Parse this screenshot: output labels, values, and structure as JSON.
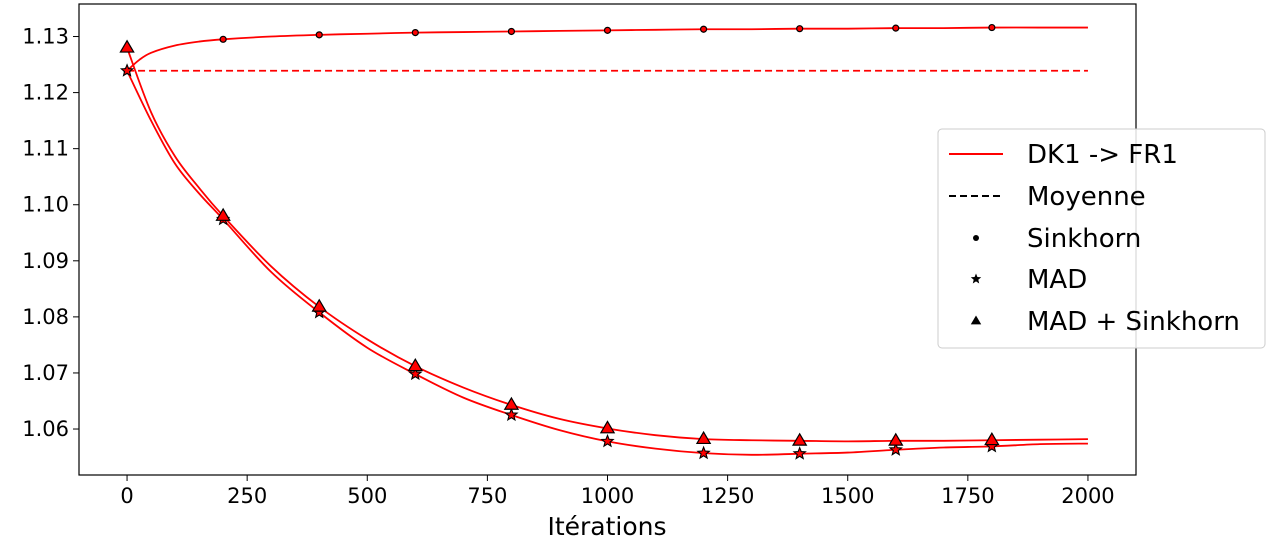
{
  "chart_data": {
    "type": "line",
    "xlabel": "Itérations",
    "ylabel": "",
    "xlim": [
      -100,
      2100
    ],
    "ylim": [
      1.0518,
      1.1358
    ],
    "xticks": [
      0,
      250,
      500,
      750,
      1000,
      1250,
      1500,
      1750,
      2000
    ],
    "xtick_labels": [
      "0",
      "250",
      "500",
      "750",
      "1000",
      "1250",
      "1500",
      "1750",
      "2000"
    ],
    "yticks": [
      1.06,
      1.07,
      1.08,
      1.09,
      1.1,
      1.11,
      1.12,
      1.13
    ],
    "ytick_labels": [
      "1.06",
      "1.07",
      "1.08",
      "1.09",
      "1.10",
      "1.11",
      "1.12",
      "1.13"
    ],
    "grid": false,
    "legend_position": "right",
    "colors": {
      "series": "#ff0000",
      "marker_fill_sinkhorn": "#e8241c",
      "marker_edge": "#000000",
      "legend_line": "#ff0000",
      "legend_dash": "#000000"
    },
    "legend": [
      {
        "label": "DK1 -> FR1",
        "style": "solid-line"
      },
      {
        "label": "Moyenne",
        "style": "dashed-line"
      },
      {
        "label": "Sinkhorn",
        "style": "dot"
      },
      {
        "label": "MAD",
        "style": "star"
      },
      {
        "label": "MAD + Sinkhorn",
        "style": "triangle"
      }
    ],
    "mean_value": 1.1239,
    "series": [
      {
        "method": "Sinkhorn",
        "marker": "dot",
        "x": [
          0,
          25,
          50,
          100,
          150,
          200,
          300,
          400,
          500,
          600,
          700,
          800,
          900,
          1000,
          1100,
          1200,
          1300,
          1400,
          1500,
          1600,
          1700,
          1800,
          1900,
          2000
        ],
        "y": [
          1.1239,
          1.1258,
          1.1271,
          1.1284,
          1.1291,
          1.1295,
          1.13,
          1.1303,
          1.1305,
          1.1307,
          1.1308,
          1.1309,
          1.131,
          1.1311,
          1.1312,
          1.1313,
          1.1313,
          1.1314,
          1.1314,
          1.1315,
          1.1315,
          1.1316,
          1.1316,
          1.1316
        ],
        "marker_x": [
          0,
          200,
          400,
          600,
          800,
          1000,
          1200,
          1400,
          1600,
          1800
        ],
        "marker_y": [
          1.1239,
          1.1295,
          1.1303,
          1.1307,
          1.1309,
          1.1311,
          1.1313,
          1.1314,
          1.1315,
          1.1316
        ]
      },
      {
        "method": "MAD",
        "marker": "star",
        "x": [
          0,
          50,
          100,
          150,
          200,
          300,
          400,
          500,
          600,
          700,
          800,
          900,
          1000,
          1100,
          1200,
          1300,
          1400,
          1500,
          1600,
          1700,
          1800,
          1900,
          2000
        ],
        "y": [
          1.1239,
          1.115,
          1.1073,
          1.102,
          1.0974,
          1.088,
          1.0808,
          1.0745,
          1.0698,
          1.0656,
          1.0625,
          1.0598,
          1.0578,
          1.0565,
          1.0557,
          1.0554,
          1.0556,
          1.0558,
          1.0563,
          1.0567,
          1.0569,
          1.0573,
          1.0574
        ],
        "marker_x": [
          0,
          200,
          400,
          600,
          800,
          1000,
          1200,
          1400,
          1600,
          1800
        ],
        "marker_y": [
          1.1239,
          1.0974,
          1.0808,
          1.0698,
          1.0625,
          1.0578,
          1.0557,
          1.0556,
          1.0563,
          1.0569
        ]
      },
      {
        "method": "MAD + Sinkhorn",
        "marker": "triangle",
        "x": [
          0,
          50,
          100,
          150,
          200,
          300,
          400,
          500,
          600,
          700,
          800,
          900,
          1000,
          1100,
          1200,
          1300,
          1400,
          1500,
          1600,
          1700,
          1800,
          1900,
          2000
        ],
        "y": [
          1.128,
          1.1165,
          1.1086,
          1.103,
          1.098,
          1.089,
          1.0818,
          1.076,
          1.0712,
          1.0674,
          1.0643,
          1.0618,
          1.0601,
          1.0589,
          1.0582,
          1.058,
          1.0579,
          1.0578,
          1.0579,
          1.0579,
          1.058,
          1.0581,
          1.0582
        ],
        "marker_x": [
          0,
          200,
          400,
          600,
          800,
          1000,
          1200,
          1400,
          1600,
          1800
        ],
        "marker_y": [
          1.128,
          1.098,
          1.0818,
          1.0712,
          1.0643,
          1.0601,
          1.0582,
          1.0579,
          1.0579,
          1.058
        ]
      }
    ]
  }
}
